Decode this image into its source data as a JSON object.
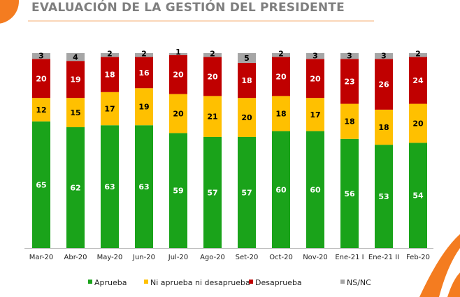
{
  "chart_data": {
    "type": "bar",
    "stacked": true,
    "title": "EVALUACIÓN DE LA GESTIÓN DEL PRESIDENTE",
    "categories": [
      "Mar-20",
      "Abr-20",
      "May-20",
      "Jun-20",
      "Jul-20",
      "Ago-20",
      "Set-20",
      "Oct-20",
      "Nov-20",
      "Ene-21 I",
      "Ene-21 II",
      "Feb-20"
    ],
    "series": [
      {
        "name": "Aprueba",
        "color": "#1aa31a",
        "values": [
          65,
          62,
          63,
          63,
          59,
          57,
          57,
          60,
          60,
          56,
          53,
          54
        ]
      },
      {
        "name": "Ni aprueba ni desaprueba",
        "color": "#ffc000",
        "values": [
          12,
          15,
          17,
          19,
          20,
          21,
          20,
          18,
          17,
          18,
          18,
          20
        ]
      },
      {
        "name": "Desaprueba",
        "color": "#c00000",
        "values": [
          20,
          19,
          18,
          16,
          20,
          20,
          18,
          20,
          20,
          23,
          26,
          24
        ]
      },
      {
        "name": "NS/NC",
        "color": "#a6a6a6",
        "values": [
          3,
          4,
          2,
          2,
          1,
          2,
          5,
          2,
          3,
          3,
          3,
          2
        ]
      }
    ],
    "ylim": [
      0,
      100
    ],
    "grid": false,
    "legend_position": "bottom",
    "data_labels": true
  },
  "accent_color": "#f47c20"
}
